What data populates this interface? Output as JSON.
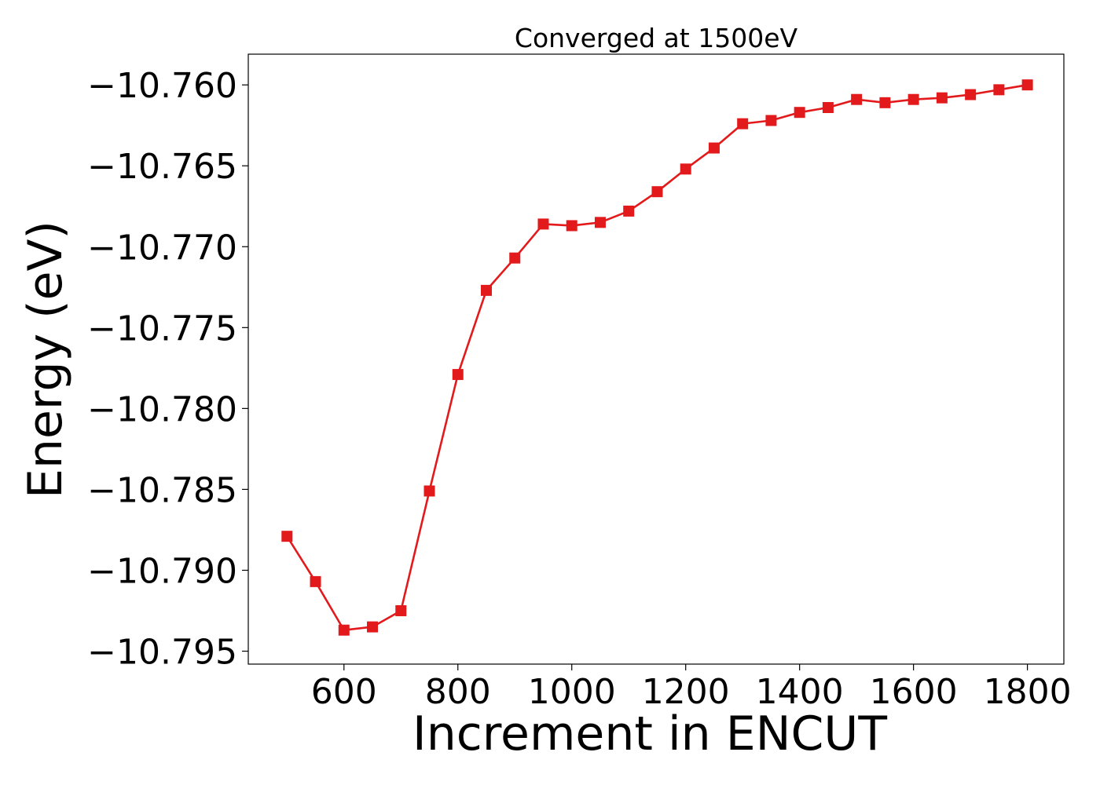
{
  "chart_data": {
    "type": "line",
    "title": "Converged at 1500eV",
    "xlabel": "Increment in ENCUT",
    "ylabel": "Energy (eV)",
    "xlim": [
      432,
      1864
    ],
    "ylim": [
      -10.7958,
      -10.7581
    ],
    "xticks": [
      600,
      800,
      1000,
      1200,
      1400,
      1600,
      1800
    ],
    "xtick_labels": [
      "600",
      "800",
      "1000",
      "1200",
      "1400",
      "1600",
      "1800"
    ],
    "yticks": [
      -10.76,
      -10.765,
      -10.77,
      -10.775,
      -10.78,
      -10.785,
      -10.79,
      -10.795
    ],
    "ytick_labels": [
      "−10.760",
      "−10.765",
      "−10.770",
      "−10.775",
      "−10.780",
      "−10.785",
      "−10.790",
      "−10.795"
    ],
    "grid": false,
    "series": [
      {
        "color": "#e31a1c",
        "marker": "square",
        "x": [
          500,
          550,
          600,
          650,
          700,
          750,
          800,
          850,
          900,
          950,
          1000,
          1050,
          1100,
          1150,
          1200,
          1250,
          1300,
          1350,
          1400,
          1450,
          1500,
          1550,
          1600,
          1650,
          1700,
          1750,
          1800
        ],
        "y": [
          -10.7879,
          -10.7907,
          -10.7937,
          -10.7935,
          -10.7925,
          -10.7851,
          -10.7779,
          -10.7727,
          -10.7707,
          -10.7686,
          -10.7687,
          -10.7685,
          -10.7678,
          -10.7666,
          -10.7652,
          -10.7639,
          -10.7624,
          -10.7622,
          -10.7617,
          -10.7614,
          -10.7609,
          -10.7611,
          -10.7609,
          -10.7608,
          -10.7606,
          -10.7603,
          -10.76
        ]
      }
    ]
  }
}
